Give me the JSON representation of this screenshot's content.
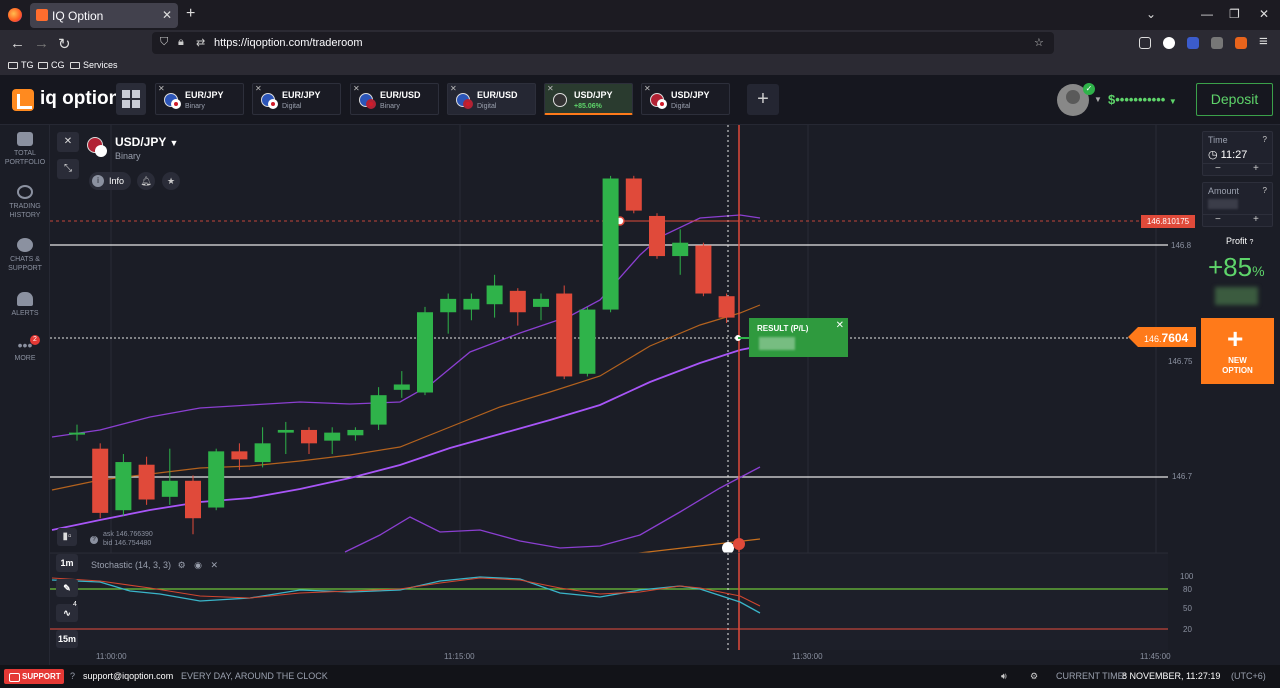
{
  "browser": {
    "tab_title": "IQ Option",
    "url": "https://iqoption.com/traderoom",
    "bookmarks": [
      "TG",
      "CG",
      "Services"
    ]
  },
  "header": {
    "logo": "iq option",
    "assets": [
      {
        "name": "EUR/JPY",
        "type": "Binary"
      },
      {
        "name": "EUR/JPY",
        "type": "Digital"
      },
      {
        "name": "EUR/USD",
        "type": "Binary"
      },
      {
        "name": "EUR/USD",
        "type": "Digital"
      },
      {
        "name": "USD/JPY",
        "type": "+85.06%"
      },
      {
        "name": "USD/JPY",
        "type": "Digital"
      }
    ],
    "balance": "$•••••••••••",
    "deposit_label": "Deposit"
  },
  "sidebar": {
    "items": [
      {
        "label1": "TOTAL",
        "label2": "PORTFOLIO",
        "icon": "briefcase-icon"
      },
      {
        "label1": "TRADING",
        "label2": "HISTORY",
        "icon": "history-icon"
      },
      {
        "label1": "CHATS &",
        "label2": "SUPPORT",
        "icon": "chat-icon"
      },
      {
        "label1": "ALERTS",
        "label2": "",
        "icon": "bell-icon"
      },
      {
        "label1": "MORE",
        "label2": "",
        "icon": "more-icon"
      }
    ],
    "more_badge": "2"
  },
  "chart": {
    "pair": "USD/JPY",
    "pair_type": "Binary",
    "info_label": "Info",
    "ask": "ask 146.766390",
    "bid": "bid 146.754480",
    "timeframe": "1m",
    "timeframe2": "15m",
    "indicator_badge": "4",
    "stochastic_label": "Stochastic (14, 3, 3)",
    "high_tag": "146.810175",
    "current_prefix": "146.",
    "current_bold": "7604",
    "price_levels": [
      "146.8",
      "146.75",
      "146.7"
    ],
    "stoch_levels": [
      "100",
      "80",
      "50",
      "20"
    ],
    "time_labels": [
      "11:00:00",
      "11:15:00",
      "11:30:00",
      "11:45:00"
    ],
    "result_label": "RESULT (P/L)"
  },
  "chart_data": {
    "type": "candlestick",
    "ylim": [
      146.676,
      146.836
    ],
    "candles": [
      {
        "o": 146.721,
        "c": 146.721,
        "h": 146.724,
        "l": 146.718
      },
      {
        "o": 146.715,
        "c": 146.691,
        "h": 146.717,
        "l": 146.689
      },
      {
        "o": 146.692,
        "c": 146.71,
        "h": 146.713,
        "l": 146.69
      },
      {
        "o": 146.709,
        "c": 146.696,
        "h": 146.712,
        "l": 146.694
      },
      {
        "o": 146.697,
        "c": 146.703,
        "h": 146.715,
        "l": 146.694
      },
      {
        "o": 146.703,
        "c": 146.689,
        "h": 146.705,
        "l": 146.683
      },
      {
        "o": 146.693,
        "c": 146.714,
        "h": 146.715,
        "l": 146.692
      },
      {
        "o": 146.714,
        "c": 146.711,
        "h": 146.717,
        "l": 146.707
      },
      {
        "o": 146.71,
        "c": 146.717,
        "h": 146.723,
        "l": 146.708
      },
      {
        "o": 146.721,
        "c": 146.722,
        "h": 146.725,
        "l": 146.713
      },
      {
        "o": 146.722,
        "c": 146.717,
        "h": 146.723,
        "l": 146.713
      },
      {
        "o": 146.718,
        "c": 146.721,
        "h": 146.723,
        "l": 146.713
      },
      {
        "o": 146.72,
        "c": 146.722,
        "h": 146.723,
        "l": 146.718
      },
      {
        "o": 146.724,
        "c": 146.735,
        "h": 146.738,
        "l": 146.722
      },
      {
        "o": 146.737,
        "c": 146.739,
        "h": 146.744,
        "l": 146.734
      },
      {
        "o": 146.736,
        "c": 146.766,
        "h": 146.768,
        "l": 146.735
      },
      {
        "o": 146.766,
        "c": 146.771,
        "h": 146.773,
        "l": 146.758
      },
      {
        "o": 146.767,
        "c": 146.771,
        "h": 146.773,
        "l": 146.763
      },
      {
        "o": 146.769,
        "c": 146.776,
        "h": 146.78,
        "l": 146.764
      },
      {
        "o": 146.774,
        "c": 146.766,
        "h": 146.775,
        "l": 146.761
      },
      {
        "o": 146.768,
        "c": 146.771,
        "h": 146.773,
        "l": 146.763
      },
      {
        "o": 146.773,
        "c": 146.742,
        "h": 146.776,
        "l": 146.741
      },
      {
        "o": 146.743,
        "c": 146.767,
        "h": 146.768,
        "l": 146.742
      },
      {
        "o": 146.767,
        "c": 146.816,
        "h": 146.817,
        "l": 146.766
      },
      {
        "o": 146.816,
        "c": 146.804,
        "h": 146.817,
        "l": 146.803
      },
      {
        "o": 146.802,
        "c": 146.787,
        "h": 146.803,
        "l": 146.786
      },
      {
        "o": 146.787,
        "c": 146.792,
        "h": 146.797,
        "l": 146.78
      },
      {
        "o": 146.791,
        "c": 146.773,
        "h": 146.792,
        "l": 146.772
      },
      {
        "o": 146.772,
        "c": 146.764,
        "h": 146.773,
        "l": 146.762
      }
    ],
    "colors": {
      "up": "#2fb34a",
      "down": "#e04a3a"
    }
  },
  "right_panel": {
    "time_label": "Time",
    "time_value": "11:27",
    "amount_label": "Amount",
    "profit_label": "Profit",
    "profit_value": "+85",
    "profit_unit": "%",
    "new_option_line1": "NEW",
    "new_option_line2": "OPTION"
  },
  "footer": {
    "support_label": "SUPPORT",
    "email": "support@iqoption.com",
    "tagline": "EVERY DAY, AROUND THE CLOCK",
    "current_time_label": "CURRENT TIME:",
    "current_time_value": "8 NOVEMBER, 11:27:19",
    "timezone": "(UTC+6)"
  },
  "colors": {
    "accent": "#ff7a1a",
    "green": "#5ed46a",
    "red": "#e04a3a",
    "purple": "#a855f7"
  }
}
